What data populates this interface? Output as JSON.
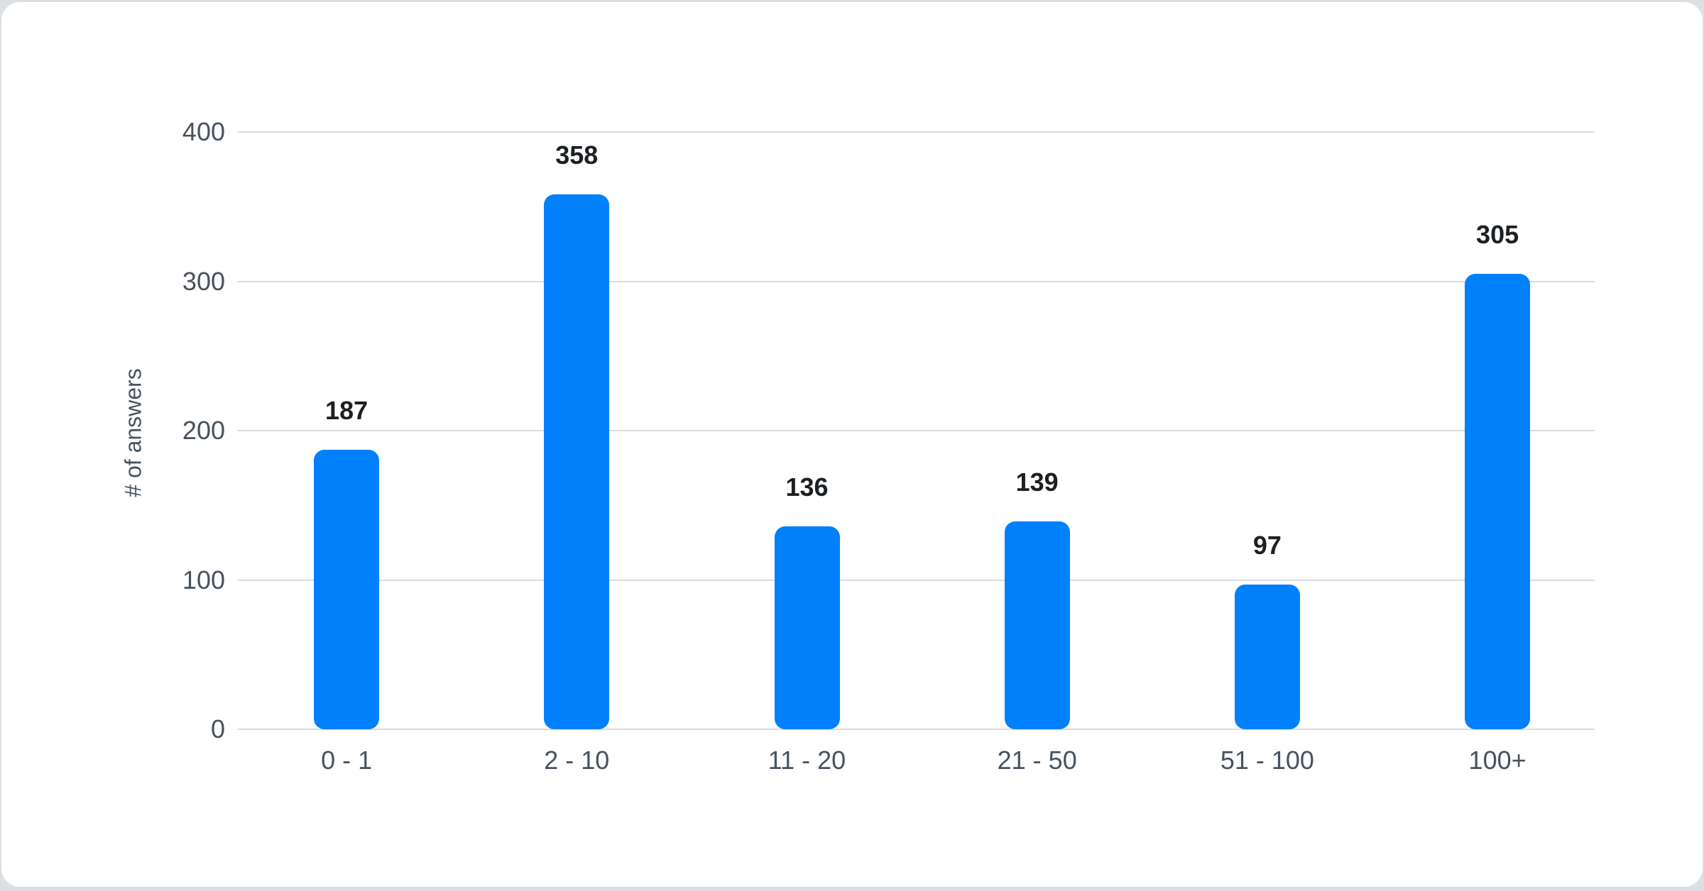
{
  "chart_data": {
    "type": "bar",
    "categories": [
      "0 - 1",
      "2 - 10",
      "11 - 20",
      "21 - 50",
      "51 - 100",
      "100+"
    ],
    "values": [
      187,
      358,
      136,
      139,
      97,
      305
    ],
    "title": "",
    "xlabel": "",
    "ylabel": "# of answers",
    "ylim": [
      0,
      400
    ],
    "yticks": [
      0,
      100,
      200,
      300,
      400
    ],
    "grid": "horizontal",
    "legend": "none",
    "colors": {
      "bar": "#0080fb",
      "grid": "#d9dcde",
      "axis_text": "#47525e",
      "value_text": "#1d2023",
      "card_bg": "#ffffff",
      "page_bg": "#dce0e3"
    }
  }
}
